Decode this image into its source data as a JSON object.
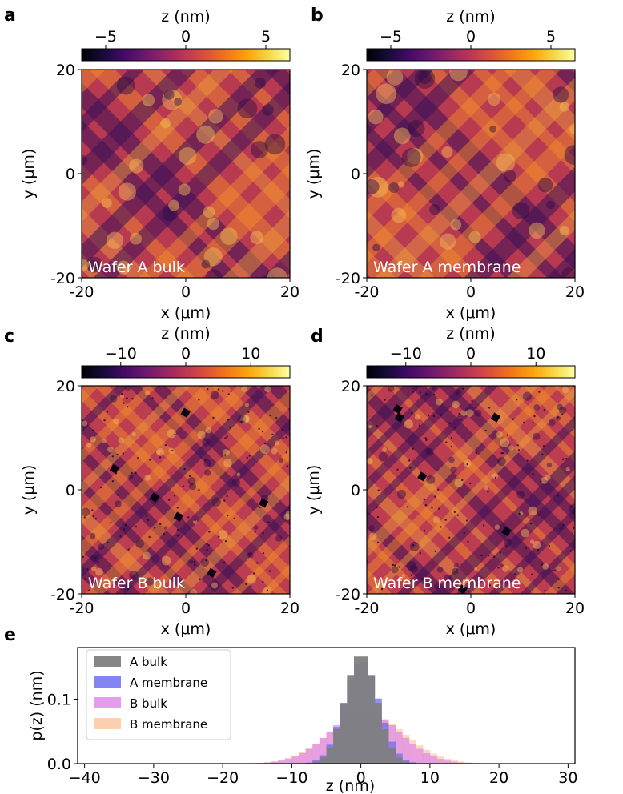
{
  "colors": {
    "colormap": [
      "#000004",
      "#160b39",
      "#420a68",
      "#6a176e",
      "#932667",
      "#bc3754",
      "#dd513a",
      "#f37819",
      "#fca50a",
      "#f6d746",
      "#fcffa4"
    ],
    "hist_a_bulk": "#7f7f7f",
    "hist_a_membrane": "#6e6ef2",
    "hist_b_bulk": "#e08be8",
    "hist_b_membrane": "#fdc9a1"
  },
  "panels": [
    {
      "letter": "a",
      "label": "Wafer A bulk",
      "colorbar": {
        "title": "z (nm)",
        "ticks": [
          "−5",
          "0",
          "5"
        ],
        "tick_values": [
          -5,
          0,
          5
        ],
        "range": [
          -6.5,
          6.5
        ]
      },
      "xlabel": "x (μm)",
      "ylabel": "y (μm)",
      "xticks": [
        "-20",
        "0",
        "20"
      ],
      "yticks": [
        "20",
        "0",
        "-20"
      ]
    },
    {
      "letter": "b",
      "label": "Wafer A membrane",
      "colorbar": {
        "title": "z (nm)",
        "ticks": [
          "−5",
          "0",
          "5"
        ],
        "tick_values": [
          -5,
          0,
          5
        ],
        "range": [
          -6.5,
          6.5
        ]
      },
      "xlabel": "x (μm)",
      "ylabel": "y (μm)",
      "xticks": [
        "-20",
        "0",
        "20"
      ],
      "yticks": [
        "20",
        "0",
        "-20"
      ]
    },
    {
      "letter": "c",
      "label": "Wafer B bulk",
      "colorbar": {
        "title": "z (nm)",
        "ticks": [
          "−10",
          "0",
          "10"
        ],
        "tick_values": [
          -10,
          0,
          10
        ],
        "range": [
          -16,
          16
        ]
      },
      "xlabel": "x (μm)",
      "ylabel": "y (μm)",
      "xticks": [
        "-20",
        "0",
        "20"
      ],
      "yticks": [
        "20",
        "0",
        "-20"
      ]
    },
    {
      "letter": "d",
      "label": "Wafer B membrane",
      "colorbar": {
        "title": "z (nm)",
        "ticks": [
          "−10",
          "0",
          "10"
        ],
        "tick_values": [
          -10,
          0,
          10
        ],
        "range": [
          -16,
          16
        ]
      },
      "xlabel": "x (μm)",
      "ylabel": "y (μm)",
      "xticks": [
        "-20",
        "0",
        "20"
      ],
      "yticks": [
        "20",
        "0",
        "-20"
      ]
    }
  ],
  "chart_data": {
    "type": "bar",
    "panel_letter": "e",
    "title": "",
    "xlabel": "z (nm)",
    "ylabel": "p(z) (nm)",
    "xlim": [
      -41,
      31
    ],
    "ylim": [
      0,
      0.18
    ],
    "xticks": [
      -40,
      -30,
      -20,
      -10,
      0,
      10,
      20,
      30
    ],
    "xtick_labels": [
      "−40",
      "−30",
      "−20",
      "−10",
      "0",
      "10",
      "20",
      "30"
    ],
    "yticks": [
      0.0,
      0.1
    ],
    "ytick_labels": [
      "0.0",
      "0.1"
    ],
    "legend_position": "top-left",
    "series": [
      {
        "name": "A bulk",
        "mean": 0.0,
        "sigma": 2.3,
        "peak": 0.17
      },
      {
        "name": "A membrane",
        "mean": 0.1,
        "sigma": 2.5,
        "peak": 0.16
      },
      {
        "name": "B bulk",
        "mean": 0.5,
        "sigma": 5.0,
        "peak": 0.082
      },
      {
        "name": "B membrane",
        "mean": 0.8,
        "sigma": 5.4,
        "peak": 0.078
      }
    ]
  }
}
